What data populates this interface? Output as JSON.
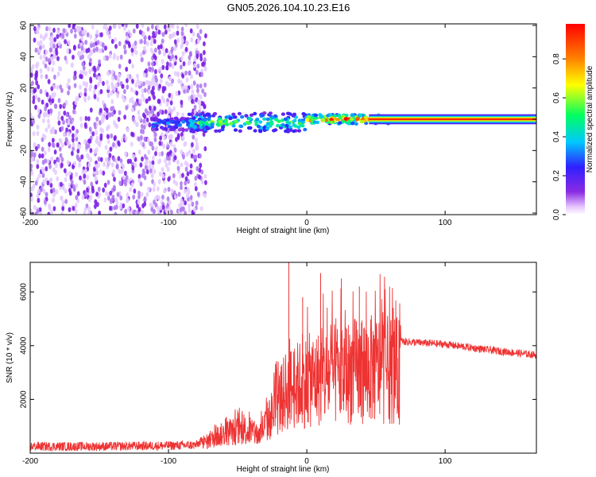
{
  "title": "GN05.2026.104.10.23.E16",
  "chart_data": [
    {
      "type": "heatmap",
      "xlabel": "Height of straight line (km)",
      "ylabel": "Frequency (Hz)",
      "xlim": [
        -200,
        166
      ],
      "ylim": [
        -61,
        61
      ],
      "xticks": [
        -200,
        -100,
        0,
        100
      ],
      "yticks": [
        -60,
        -40,
        -20,
        0,
        20,
        40,
        60
      ],
      "colorbar": {
        "label": "Normalized spectral amplitude",
        "range": [
          0,
          0.98
        ],
        "ticks": [
          "0.0",
          "0.2",
          "0.4",
          "0.6",
          "0.8"
        ],
        "colors": [
          "#ffffff",
          "#e8c8ff",
          "#8a2be2",
          "#3020ff",
          "#00c8ff",
          "#00ff60",
          "#ffff00",
          "#ff8000",
          "#ff0000"
        ]
      },
      "regions": [
        {
          "x_range": [
            -200,
            -73
          ],
          "freq_range": [
            -61,
            61
          ],
          "amplitude": 0.15,
          "description_level": "noise"
        },
        {
          "x_range": [
            -112,
            -73
          ],
          "freq_center": -3,
          "freq_halfwidth": 4,
          "amplitude": 0.3
        },
        {
          "x_range": [
            -85,
            0
          ],
          "freq_center": -2,
          "freq_halfwidth": 6,
          "amplitude": 0.45
        },
        {
          "x_range": [
            0,
            60
          ],
          "freq_center": 0,
          "freq_halfwidth": 3,
          "amplitude": 0.75
        },
        {
          "x_range": [
            45,
            166
          ],
          "freq_center": 0,
          "freq_halfwidth": 1.5,
          "amplitude": 0.98
        }
      ]
    },
    {
      "type": "line",
      "xlabel": "Height of straight line (km)",
      "ylabel": "SNR (10 * v/v)",
      "xlim": [
        -200,
        166
      ],
      "ylim": [
        0,
        7100
      ],
      "xticks": [
        -200,
        -100,
        0,
        100
      ],
      "yticks": [
        2000,
        4000,
        6000
      ],
      "color": "#ee3333",
      "series_envelope": [
        {
          "x": -200,
          "y": 250
        },
        {
          "x": -150,
          "y": 250
        },
        {
          "x": -100,
          "y": 280
        },
        {
          "x": -80,
          "y": 300
        },
        {
          "x": -72,
          "y": 600
        },
        {
          "x": -60,
          "y": 1000
        },
        {
          "x": -45,
          "y": 1200
        },
        {
          "x": -35,
          "y": 900
        },
        {
          "x": -25,
          "y": 2000
        },
        {
          "x": -15,
          "y": 3200
        },
        {
          "x": 0,
          "y": 3700
        },
        {
          "x": 20,
          "y": 4000
        },
        {
          "x": 40,
          "y": 4300
        },
        {
          "x": 60,
          "y": 4300
        },
        {
          "x": 70,
          "y": 4150
        },
        {
          "x": 100,
          "y": 4050
        },
        {
          "x": 130,
          "y": 3850
        },
        {
          "x": 166,
          "y": 3650
        }
      ],
      "peaks": [
        {
          "x": -13,
          "y": 7100
        },
        {
          "x": 10,
          "y": 6700
        },
        {
          "x": 25,
          "y": 6500
        },
        {
          "x": 38,
          "y": 6200
        },
        {
          "x": -3,
          "y": 5800
        }
      ]
    }
  ]
}
